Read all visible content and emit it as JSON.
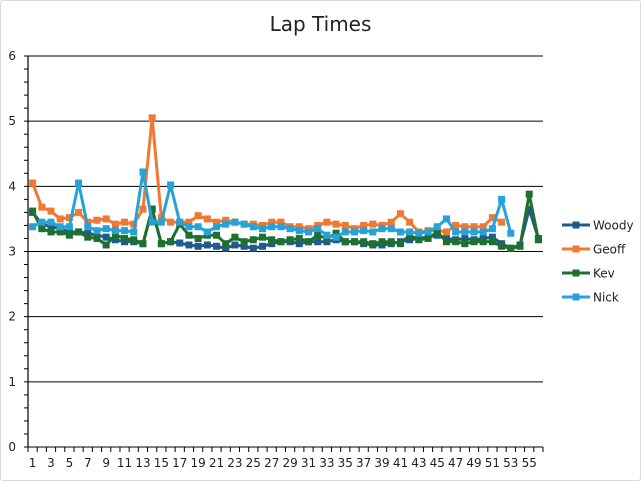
{
  "chart_data": {
    "type": "line",
    "title": "Lap Times",
    "xlabel": "",
    "ylabel": "",
    "ylim": [
      0,
      6
    ],
    "yticks": [
      0,
      1,
      2,
      3,
      4,
      5,
      6
    ],
    "x": [
      1,
      2,
      3,
      4,
      5,
      6,
      7,
      8,
      9,
      10,
      11,
      12,
      13,
      14,
      15,
      16,
      17,
      18,
      19,
      20,
      21,
      22,
      23,
      24,
      25,
      26,
      27,
      28,
      29,
      30,
      31,
      32,
      33,
      34,
      35,
      36,
      37,
      38,
      39,
      40,
      41,
      42,
      43,
      44,
      45,
      46,
      47,
      48,
      49,
      50,
      51,
      52,
      53,
      54,
      55,
      56
    ],
    "x_tick_labels": [
      1,
      3,
      5,
      7,
      9,
      11,
      13,
      15,
      17,
      19,
      21,
      23,
      25,
      27,
      29,
      31,
      33,
      35,
      37,
      39,
      41,
      43,
      45,
      47,
      49,
      51,
      53,
      55
    ],
    "grid": "horizontal",
    "legend_position": "right",
    "series": [
      {
        "name": "Woody",
        "color": "#1f5b8f",
        "values": [
          3.6,
          3.42,
          3.38,
          3.35,
          3.3,
          3.3,
          3.28,
          3.25,
          3.22,
          3.18,
          3.15,
          3.15,
          3.12,
          3.65,
          3.12,
          3.15,
          3.13,
          3.1,
          3.08,
          3.1,
          3.08,
          3.05,
          3.1,
          3.08,
          3.05,
          3.08,
          3.12,
          3.15,
          3.15,
          3.12,
          3.15,
          3.15,
          3.15,
          3.18,
          3.15,
          3.15,
          3.12,
          3.1,
          3.1,
          3.12,
          3.15,
          3.18,
          3.2,
          3.22,
          3.25,
          3.2,
          3.18,
          3.2,
          3.18,
          3.2,
          3.22,
          3.12,
          3.05,
          3.1,
          3.65,
          3.2
        ]
      },
      {
        "name": "Geoff",
        "color": "#f07832",
        "values": [
          4.05,
          3.68,
          3.62,
          3.5,
          3.52,
          3.6,
          3.45,
          3.48,
          3.5,
          3.42,
          3.45,
          3.42,
          3.65,
          5.05,
          3.52,
          3.45,
          3.45,
          3.45,
          3.55,
          3.5,
          3.45,
          3.48,
          3.45,
          3.42,
          3.42,
          3.4,
          3.45,
          3.45,
          3.38,
          3.38,
          3.35,
          3.4,
          3.45,
          3.42,
          3.4,
          3.35,
          3.4,
          3.42,
          3.4,
          3.45,
          3.58,
          3.45,
          3.3,
          3.32,
          3.32,
          3.3,
          3.4,
          3.38,
          3.38,
          3.38,
          3.52,
          3.45,
          null,
          null,
          null,
          null
        ]
      },
      {
        "name": "Kev",
        "color": "#1e7030",
        "values": [
          3.62,
          3.35,
          3.3,
          3.3,
          3.25,
          3.3,
          3.22,
          3.2,
          3.1,
          3.25,
          3.2,
          3.18,
          3.12,
          3.65,
          3.12,
          3.15,
          3.42,
          3.25,
          3.2,
          3.25,
          3.25,
          3.12,
          3.22,
          3.15,
          3.18,
          3.22,
          3.18,
          3.15,
          3.18,
          3.2,
          3.15,
          3.25,
          3.2,
          3.28,
          3.15,
          3.15,
          3.15,
          3.12,
          3.15,
          3.15,
          3.12,
          3.25,
          3.18,
          3.2,
          3.3,
          3.15,
          3.15,
          3.12,
          3.15,
          3.15,
          3.15,
          3.08,
          3.05,
          3.08,
          3.88,
          3.18
        ]
      },
      {
        "name": "Nick",
        "color": "#26a2d9",
        "values": [
          3.38,
          3.45,
          3.45,
          3.38,
          3.38,
          4.05,
          3.38,
          3.32,
          3.35,
          3.32,
          3.32,
          3.3,
          4.22,
          3.45,
          3.45,
          4.02,
          3.45,
          3.38,
          3.38,
          3.3,
          3.38,
          3.42,
          3.45,
          3.42,
          3.38,
          3.35,
          3.38,
          3.38,
          3.35,
          3.32,
          3.3,
          3.35,
          3.25,
          3.22,
          3.3,
          3.3,
          3.32,
          3.3,
          3.35,
          3.35,
          3.3,
          3.3,
          3.28,
          3.3,
          3.38,
          3.5,
          3.3,
          3.3,
          3.3,
          3.3,
          3.35,
          3.8,
          3.28,
          null,
          null,
          null
        ]
      }
    ]
  }
}
